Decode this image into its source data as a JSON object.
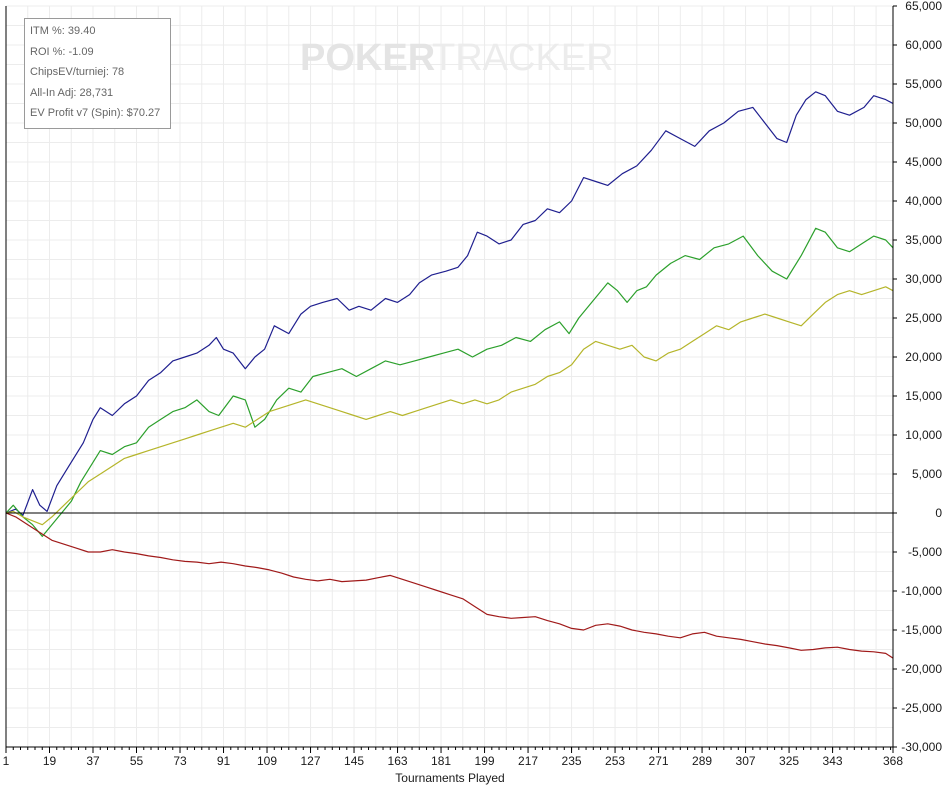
{
  "watermark": {
    "part1": "POKER",
    "part2": "TRACKER"
  },
  "stats": [
    {
      "label": "ITM %:",
      "value": "39.40"
    },
    {
      "label": "ROI %:",
      "value": "-1.09"
    },
    {
      "label": "ChipsEV/turniej:",
      "value": "78"
    },
    {
      "label": "All-In Adj:",
      "value": "28,731"
    },
    {
      "label": "EV Profit v7 (Spin):",
      "value": "$70.27"
    }
  ],
  "chart_data": {
    "type": "line",
    "title": "",
    "xlabel": "Tournaments Played",
    "ylabel": "",
    "xlim": [
      1,
      368
    ],
    "ylim": [
      -30000,
      65000
    ],
    "x_ticks": [
      1,
      19,
      37,
      55,
      73,
      91,
      109,
      127,
      145,
      163,
      181,
      199,
      217,
      235,
      253,
      271,
      289,
      307,
      325,
      343,
      368
    ],
    "y_ticks": [
      -30000,
      -25000,
      -20000,
      -15000,
      -10000,
      -5000,
      0,
      5000,
      10000,
      15000,
      20000,
      25000,
      30000,
      35000,
      40000,
      45000,
      50000,
      55000,
      60000,
      65000
    ],
    "y_tick_labels": [
      "-30,000",
      "-25,000",
      "-20,000",
      "-15,000",
      "-10,000",
      "-5,000",
      "0",
      "5,000",
      "10,000",
      "15,000",
      "20,000",
      "25,000",
      "30,000",
      "35,000",
      "40,000",
      "45,000",
      "50,000",
      "55,000",
      "60,000",
      "65,000"
    ],
    "grid": true,
    "legend": "none",
    "series": [
      {
        "color": "#1f1f8f",
        "x": [
          1,
          5,
          8,
          12,
          15,
          18,
          22,
          27,
          33,
          37,
          40,
          45,
          50,
          55,
          60,
          65,
          70,
          75,
          80,
          85,
          88,
          91,
          95,
          100,
          104,
          108,
          112,
          118,
          123,
          127,
          132,
          138,
          143,
          147,
          152,
          158,
          163,
          168,
          172,
          177,
          183,
          188,
          192,
          196,
          200,
          205,
          210,
          215,
          220,
          225,
          230,
          235,
          240,
          245,
          250,
          256,
          262,
          268,
          274,
          280,
          286,
          292,
          298,
          304,
          310,
          315,
          320,
          324,
          328,
          332,
          336,
          340,
          345,
          350,
          356,
          360,
          365,
          368
        ],
        "y": [
          0,
          500,
          -300,
          3000,
          1000,
          200,
          3500,
          6000,
          9000,
          12000,
          13500,
          12500,
          14000,
          15000,
          17000,
          18000,
          19500,
          20000,
          20500,
          21500,
          22500,
          21000,
          20500,
          18500,
          20000,
          21000,
          24000,
          23000,
          25500,
          26500,
          27000,
          27500,
          26000,
          26500,
          26000,
          27500,
          27000,
          28000,
          29500,
          30500,
          31000,
          31500,
          33000,
          36000,
          35500,
          34500,
          35000,
          37000,
          37500,
          39000,
          38500,
          40000,
          43000,
          42500,
          42000,
          43500,
          44500,
          46500,
          49000,
          48000,
          47000,
          49000,
          50000,
          51500,
          52000,
          50000,
          48000,
          47500,
          51000,
          53000,
          54000,
          53500,
          51500,
          51000,
          52000,
          53500,
          53000,
          52500
        ]
      },
      {
        "color": "#2ca02c",
        "x": [
          1,
          4,
          8,
          12,
          16,
          20,
          24,
          28,
          32,
          36,
          40,
          45,
          50,
          55,
          60,
          65,
          70,
          75,
          80,
          85,
          89,
          95,
          100,
          104,
          108,
          113,
          118,
          123,
          128,
          134,
          140,
          146,
          152,
          158,
          164,
          170,
          176,
          182,
          188,
          194,
          200,
          206,
          212,
          218,
          224,
          230,
          234,
          238,
          242,
          246,
          250,
          254,
          258,
          262,
          266,
          270,
          276,
          282,
          288,
          294,
          300,
          306,
          312,
          318,
          324,
          330,
          336,
          340,
          345,
          350,
          355,
          360,
          365,
          368
        ],
        "y": [
          0,
          1000,
          -500,
          -1500,
          -3000,
          -1500,
          0,
          1500,
          4000,
          6000,
          8000,
          7500,
          8500,
          9000,
          11000,
          12000,
          13000,
          13500,
          14500,
          13000,
          12500,
          15000,
          14500,
          11000,
          12000,
          14500,
          16000,
          15500,
          17500,
          18000,
          18500,
          17500,
          18500,
          19500,
          19000,
          19500,
          20000,
          20500,
          21000,
          20000,
          21000,
          21500,
          22500,
          22000,
          23500,
          24500,
          23000,
          25000,
          26500,
          28000,
          29500,
          28500,
          27000,
          28500,
          29000,
          30500,
          32000,
          33000,
          32500,
          34000,
          34500,
          35500,
          33000,
          31000,
          30000,
          33000,
          36500,
          36000,
          34000,
          33500,
          34500,
          35500,
          35000,
          34000
        ]
      },
      {
        "color": "#b5b52a",
        "x": [
          1,
          4,
          8,
          12,
          16,
          20,
          25,
          30,
          35,
          40,
          45,
          50,
          55,
          60,
          65,
          70,
          75,
          80,
          85,
          90,
          95,
          100,
          105,
          110,
          115,
          120,
          125,
          130,
          135,
          140,
          145,
          150,
          155,
          160,
          165,
          170,
          175,
          180,
          185,
          190,
          195,
          200,
          205,
          210,
          215,
          220,
          225,
          230,
          235,
          240,
          245,
          250,
          255,
          260,
          265,
          270,
          275,
          280,
          285,
          290,
          295,
          300,
          305,
          310,
          315,
          320,
          325,
          330,
          335,
          340,
          345,
          350,
          355,
          360,
          365,
          368
        ],
        "y": [
          0,
          200,
          -500,
          -1000,
          -1500,
          -500,
          1000,
          2500,
          4000,
          5000,
          6000,
          7000,
          7500,
          8000,
          8500,
          9000,
          9500,
          10000,
          10500,
          11000,
          11500,
          11000,
          12000,
          13000,
          13500,
          14000,
          14500,
          14000,
          13500,
          13000,
          12500,
          12000,
          12500,
          13000,
          12500,
          13000,
          13500,
          14000,
          14500,
          14000,
          14500,
          14000,
          14500,
          15500,
          16000,
          16500,
          17500,
          18000,
          19000,
          21000,
          22000,
          21500,
          21000,
          21500,
          20000,
          19500,
          20500,
          21000,
          22000,
          23000,
          24000,
          23500,
          24500,
          25000,
          25500,
          25000,
          24500,
          24000,
          25500,
          27000,
          28000,
          28500,
          28000,
          28500,
          29000,
          28500
        ]
      },
      {
        "color": "#a01a1a",
        "x": [
          1,
          5,
          10,
          15,
          20,
          25,
          30,
          35,
          40,
          45,
          50,
          55,
          60,
          65,
          70,
          75,
          80,
          85,
          90,
          95,
          100,
          105,
          110,
          115,
          120,
          125,
          130,
          135,
          140,
          145,
          150,
          155,
          160,
          165,
          170,
          175,
          180,
          185,
          190,
          195,
          200,
          205,
          210,
          215,
          220,
          225,
          230,
          235,
          240,
          245,
          250,
          255,
          260,
          265,
          270,
          275,
          280,
          285,
          290,
          295,
          300,
          305,
          310,
          315,
          320,
          325,
          330,
          335,
          340,
          345,
          350,
          355,
          360,
          365,
          368
        ],
        "y": [
          0,
          -500,
          -1500,
          -2500,
          -3500,
          -4000,
          -4500,
          -5000,
          -5000,
          -4700,
          -5000,
          -5200,
          -5500,
          -5700,
          -6000,
          -6200,
          -6300,
          -6500,
          -6300,
          -6500,
          -6800,
          -7000,
          -7300,
          -7700,
          -8200,
          -8500,
          -8700,
          -8500,
          -8800,
          -8700,
          -8600,
          -8300,
          -8000,
          -8500,
          -9000,
          -9500,
          -10000,
          -10500,
          -11000,
          -12000,
          -13000,
          -13300,
          -13500,
          -13400,
          -13300,
          -13800,
          -14200,
          -14800,
          -15000,
          -14400,
          -14200,
          -14500,
          -15000,
          -15300,
          -15500,
          -15800,
          -16000,
          -15500,
          -15300,
          -15800,
          -16000,
          -16200,
          -16500,
          -16800,
          -17000,
          -17300,
          -17600,
          -17500,
          -17300,
          -17200,
          -17500,
          -17700,
          -17800,
          -18000,
          -18600
        ]
      }
    ]
  }
}
